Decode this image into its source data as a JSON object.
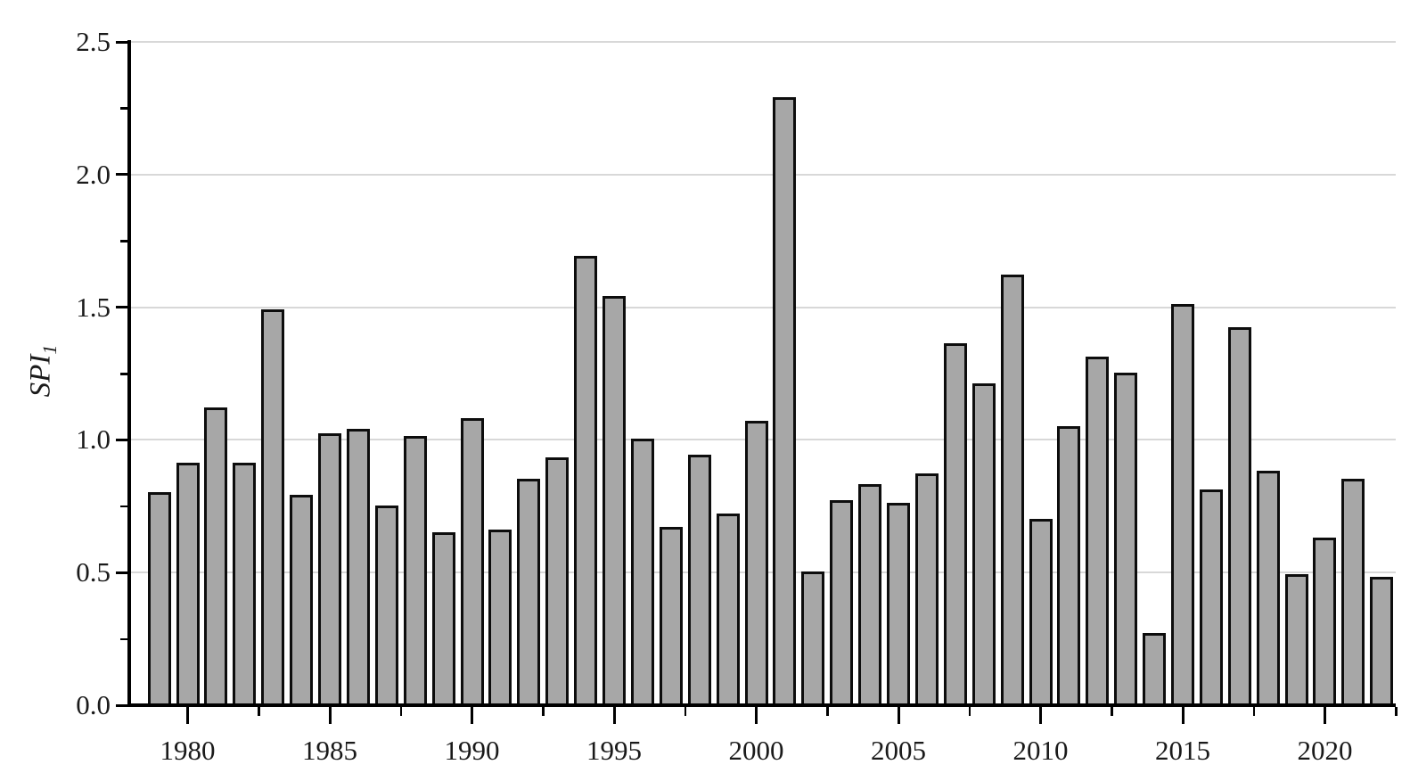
{
  "chart_data": {
    "type": "bar",
    "title": "",
    "xlabel": "",
    "ylabel": "SPI_1",
    "ylabel_main": "SPI",
    "ylabel_sub": "1",
    "categories": [
      "1979",
      "1980",
      "1981",
      "1982",
      "1983",
      "1984",
      "1985",
      "1986",
      "1987",
      "1988",
      "1989",
      "1990",
      "1991",
      "1992",
      "1993",
      "1994",
      "1995",
      "1996",
      "1997",
      "1998",
      "1999",
      "2000",
      "2001",
      "2002",
      "2003",
      "2004",
      "2005",
      "2006",
      "2007",
      "2008",
      "2009",
      "2010",
      "2011",
      "2012",
      "2013",
      "2014",
      "2015",
      "2016",
      "2017",
      "2018",
      "2019",
      "2020",
      "2021",
      "2022"
    ],
    "values": [
      0.81,
      0.92,
      1.13,
      0.92,
      1.5,
      0.8,
      1.03,
      1.05,
      0.76,
      1.02,
      0.66,
      1.09,
      0.67,
      0.86,
      0.94,
      1.7,
      1.55,
      1.01,
      0.68,
      0.95,
      0.73,
      1.08,
      2.3,
      0.51,
      0.78,
      0.84,
      0.77,
      0.88,
      1.37,
      1.22,
      1.63,
      0.71,
      1.06,
      1.32,
      1.26,
      0.28,
      1.52,
      0.82,
      1.43,
      0.89,
      0.5,
      0.64,
      0.86,
      0.49
    ],
    "ylim": [
      0,
      2.5
    ],
    "ytick_labels": [
      "0.0",
      "0.5",
      "1.0",
      "1.5",
      "2.0",
      "2.5"
    ],
    "ytick_values": [
      0,
      0.5,
      1,
      1.5,
      2,
      2.5
    ],
    "yminor_tick_values": [
      0.25,
      0.75,
      1.25,
      1.75,
      2.25
    ],
    "xtick_labels": [
      "1980",
      "1985",
      "1990",
      "1995",
      "2000",
      "2005",
      "2010",
      "2015",
      "2020"
    ],
    "xtick_years": [
      1980,
      1985,
      1990,
      1995,
      2000,
      2005,
      2010,
      2015,
      2020
    ],
    "xminor_tick_years": [
      1982.5,
      1987.5,
      1992.5,
      1997.5,
      2002.5,
      2007.5,
      2012.5,
      2017.5,
      2022.5
    ],
    "grid": "horizontal-only",
    "legend": "none",
    "colors": {
      "bar_fill": "#a7a7a7",
      "bar_edge": "#0d0d0d",
      "gridline": "#d8d8d8",
      "axis": "#000000",
      "text": "#1a1a1a",
      "background": "#ffffff"
    }
  }
}
